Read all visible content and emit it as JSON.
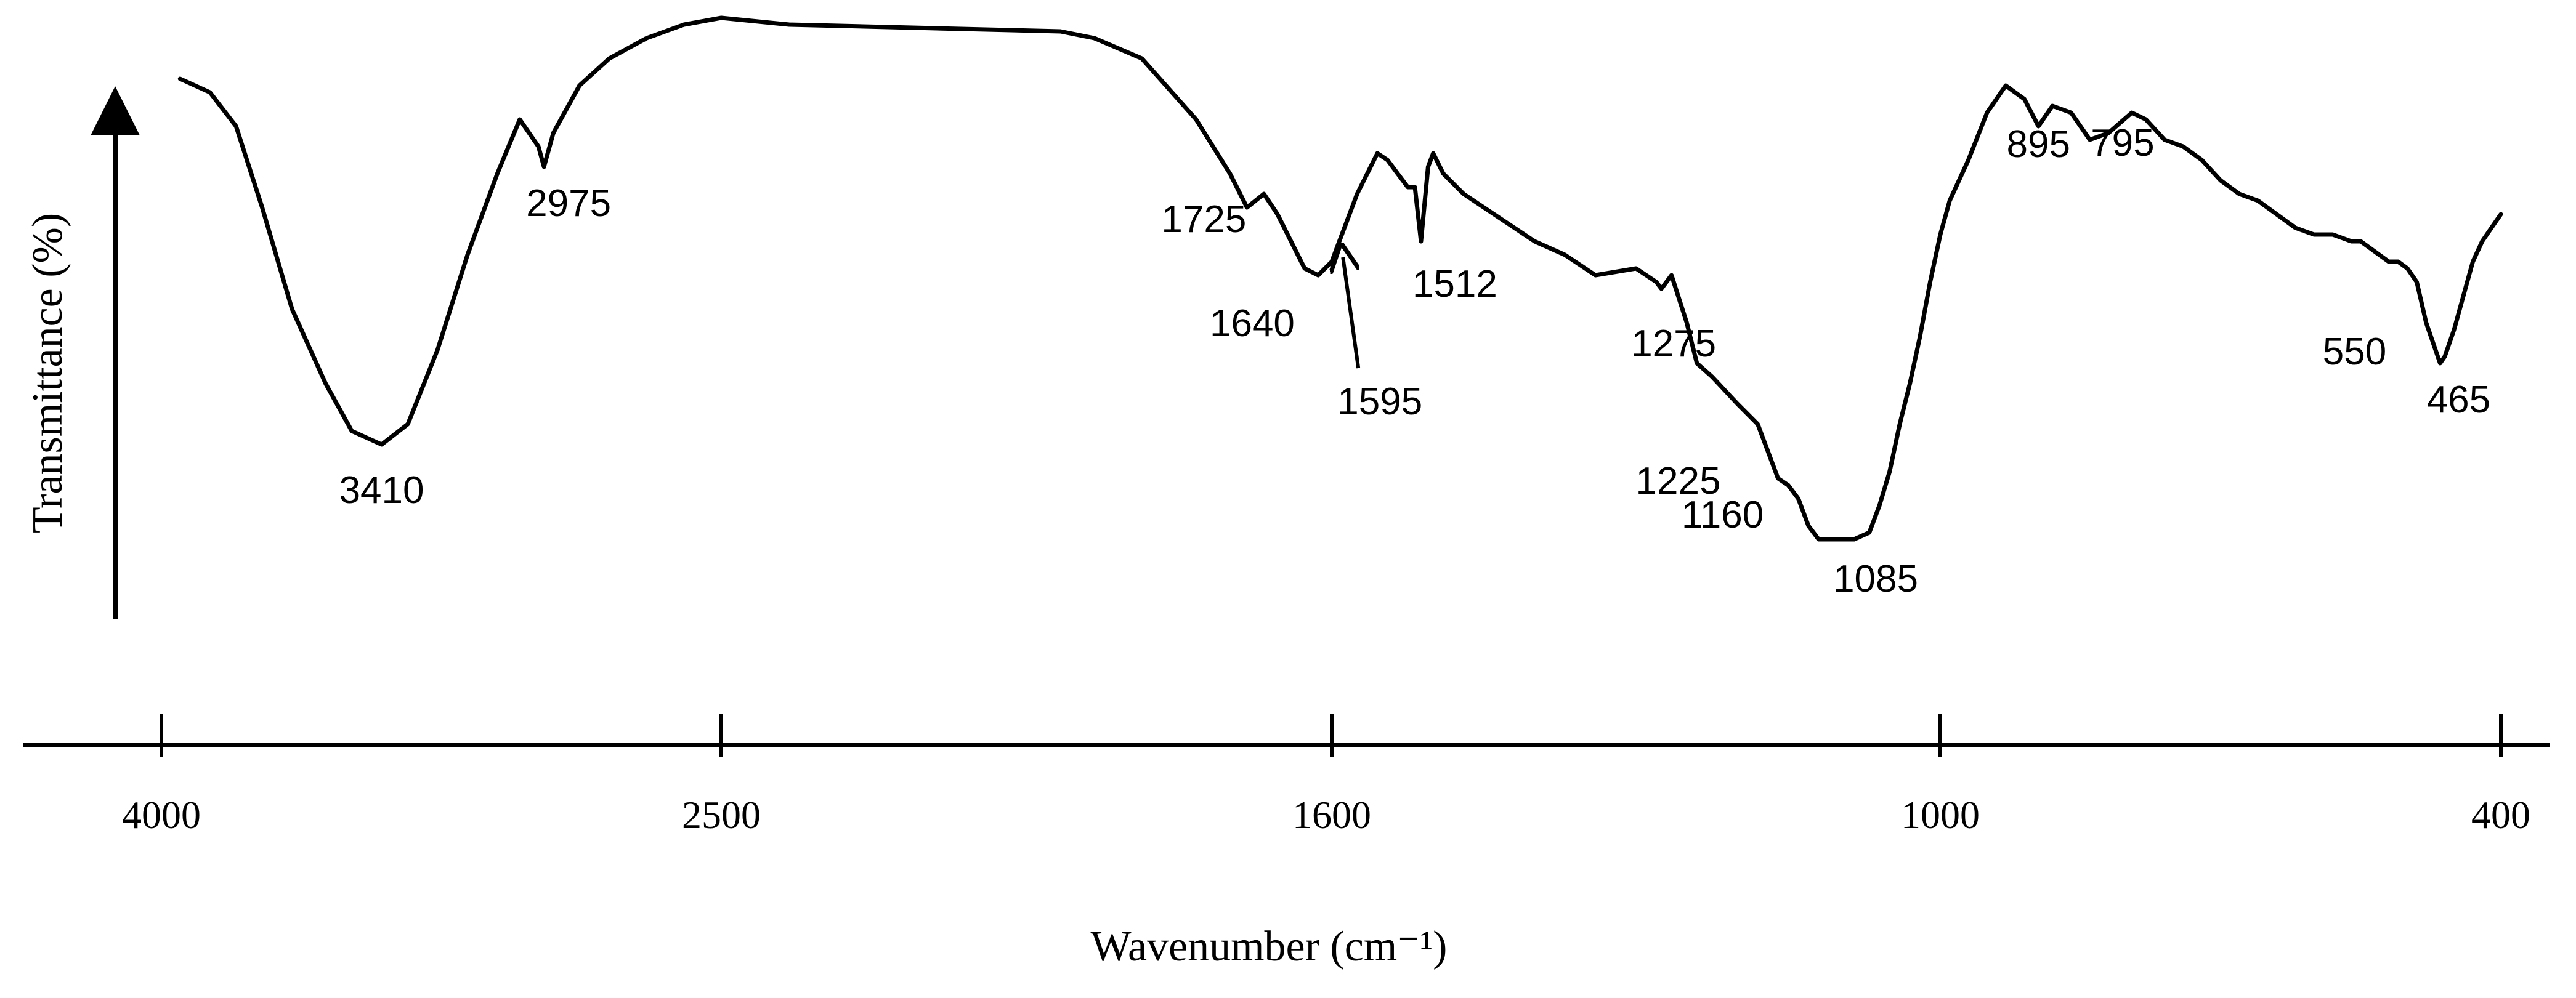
{
  "chart_data": {
    "type": "line",
    "xlabel": "Wavenumber (cm⁻¹)",
    "ylabel": "Transmittance (%)",
    "x_axis": {
      "ticks": [
        4000,
        2500,
        1600,
        1000,
        400
      ],
      "tick_labels": [
        "4000",
        "2500",
        "1600",
        "1000",
        "400"
      ],
      "direction": "descending"
    },
    "y_axis": {
      "range": [
        0,
        100
      ],
      "tick_labels": [],
      "arrow": true
    },
    "grid": false,
    "series": [
      {
        "color": "#000000",
        "x": [
          3950,
          3870,
          3800,
          3730,
          3650,
          3560,
          3490,
          3410,
          3340,
          3260,
          3180,
          3100,
          3040,
          2990,
          2975,
          2950,
          2880,
          2800,
          2700,
          2600,
          2500,
          2400,
          2200,
          2000,
          1950,
          1880,
          1800,
          1750,
          1725,
          1700,
          1680,
          1660,
          1640,
          1620,
          1600,
          1595,
          1575,
          1555,
          1545,
          1535,
          1525,
          1518,
          1512,
          1505,
          1500,
          1490,
          1470,
          1450,
          1430,
          1400,
          1370,
          1340,
          1300,
          1290,
          1280,
          1275,
          1265,
          1250,
          1240,
          1225,
          1200,
          1180,
          1170,
          1160,
          1150,
          1140,
          1130,
          1120,
          1110,
          1100,
          1085,
          1070,
          1060,
          1050,
          1040,
          1030,
          1020,
          1010,
          1000,
          990,
          970,
          950,
          930,
          910,
          895,
          880,
          860,
          840,
          820,
          795,
          780,
          760,
          740,
          720,
          700,
          680,
          660,
          640,
          620,
          600,
          580,
          560,
          550,
          540,
          530,
          520,
          510,
          500,
          490,
          480,
          470,
          465,
          460,
          450,
          440,
          430,
          420,
          410,
          400
        ],
        "values": [
          92,
          90,
          85,
          73,
          58,
          47,
          40,
          38,
          41,
          52,
          66,
          78,
          86,
          82,
          79,
          84,
          91,
          95,
          98,
          100,
          101,
          100,
          99.5,
          99,
          98,
          95,
          86,
          78,
          73,
          75,
          72,
          68,
          64,
          63,
          65,
          67,
          75,
          81,
          80,
          78,
          76,
          76,
          68,
          79,
          81,
          78,
          75,
          73,
          71,
          68,
          66,
          63,
          64,
          63,
          62,
          61,
          63,
          56,
          50,
          48,
          44,
          41,
          37,
          33,
          32,
          30,
          26,
          24,
          24,
          24,
          24,
          25,
          29,
          34,
          41,
          47,
          54,
          62,
          69,
          74,
          80,
          87,
          91,
          89,
          85,
          88,
          87,
          83,
          84,
          87,
          86,
          83,
          82,
          80,
          77,
          75,
          74,
          72,
          70,
          69,
          69,
          68,
          68,
          67,
          66,
          65,
          65,
          64,
          62,
          56,
          52,
          50,
          51,
          55,
          60,
          65,
          68,
          70,
          72
        ]
      }
    ],
    "annotations": [
      {
        "label": "3410",
        "x": 3410
      },
      {
        "label": "2975",
        "x": 2975
      },
      {
        "label": "1725",
        "x": 1725
      },
      {
        "label": "1640",
        "x": 1640
      },
      {
        "label": "1595",
        "x": 1595,
        "arrow": true
      },
      {
        "label": "1512",
        "x": 1512
      },
      {
        "label": "1275",
        "x": 1275
      },
      {
        "label": "1225",
        "x": 1225
      },
      {
        "label": "1160",
        "x": 1160
      },
      {
        "label": "1085",
        "x": 1085
      },
      {
        "label": "895",
        "x": 895
      },
      {
        "label": "795",
        "x": 795
      },
      {
        "label": "550",
        "x": 550
      },
      {
        "label": "465",
        "x": 465
      }
    ]
  }
}
